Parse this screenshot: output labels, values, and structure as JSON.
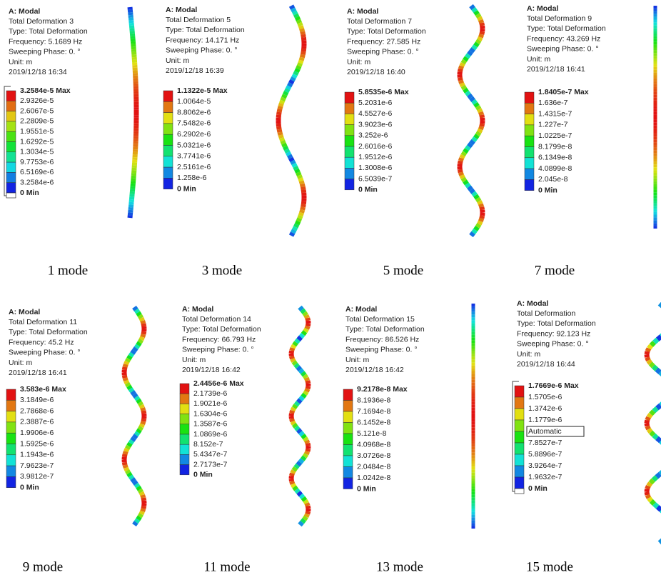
{
  "panels": [
    {
      "header": [
        "A: Modal",
        "Total Deformation 3",
        "Type: Total Deformation",
        "Frequency: 5.1689 Hz",
        "Sweeping Phase: 0. °",
        "Unit: m",
        "2019/12/18 16:34"
      ],
      "legend": [
        "3.2584e-5 Max",
        "2.9326e-5",
        "2.6067e-5",
        "2.2809e-5",
        "1.9551e-5",
        "1.6292e-5",
        "1.3034e-5",
        "9.7753e-6",
        "6.5169e-6",
        "3.2584e-6",
        "0 Min"
      ],
      "caption": "1 mode"
    },
    {
      "header": [
        "A: Modal",
        "Total Deformation 5",
        "Type: Total Deformation",
        "Frequency: 14.171 Hz",
        "Sweeping Phase: 0. °",
        "Unit: m",
        "2019/12/18 16:39"
      ],
      "legend": [
        "1.1322e-5 Max",
        "1.0064e-5",
        "8.8062e-6",
        "7.5482e-6",
        "6.2902e-6",
        "5.0321e-6",
        "3.7741e-6",
        "2.5161e-6",
        "1.258e-6",
        "0 Min"
      ],
      "caption": "3 mode"
    },
    {
      "header": [
        "A: Modal",
        "Total Deformation 7",
        "Type: Total Deformation",
        "Frequency: 27.585 Hz",
        "Sweeping Phase: 0. °",
        "Unit: m",
        "2019/12/18 16:40"
      ],
      "legend": [
        "5.8535e-6 Max",
        "5.2031e-6",
        "4.5527e-6",
        "3.9023e-6",
        "3.252e-6",
        "2.6016e-6",
        "1.9512e-6",
        "1.3008e-6",
        "6.5039e-7",
        "0 Min"
      ],
      "caption": "5 mode"
    },
    {
      "header": [
        "A: Modal",
        "Total Deformation 9",
        "Type: Total Deformation",
        "Frequency: 43.269 Hz",
        "Sweeping Phase: 0. °",
        "Unit: m",
        "2019/12/18 16:41"
      ],
      "legend": [
        "1.8405e-7 Max",
        "1.636e-7",
        "1.4315e-7",
        "1.227e-7",
        "1.0225e-7",
        "8.1799e-8",
        "6.1349e-8",
        "4.0899e-8",
        "2.045e-8",
        "0 Min"
      ],
      "caption": "7 mode"
    },
    {
      "header": [
        "A: Modal",
        "Total Deformation 11",
        "Type: Total Deformation",
        "Frequency: 45.2 Hz",
        "Sweeping Phase: 0. °",
        "Unit: m",
        "2019/12/18 16:41"
      ],
      "legend": [
        "3.583e-6 Max",
        "3.1849e-6",
        "2.7868e-6",
        "2.3887e-6",
        "1.9906e-6",
        "1.5925e-6",
        "1.1943e-6",
        "7.9623e-7",
        "3.9812e-7",
        "0 Min"
      ],
      "caption": "9 mode"
    },
    {
      "header": [
        "A: Modal",
        "Total Deformation 14",
        "Type: Total Deformation",
        "Frequency: 66.793 Hz",
        "Sweeping Phase: 0. °",
        "Unit: m",
        "2019/12/18 16:42"
      ],
      "legend": [
        "2.4456e-6 Max",
        "2.1739e-6",
        "1.9021e-6",
        "1.6304e-6",
        "1.3587e-6",
        "1.0869e-6",
        "8.152e-7",
        "5.4347e-7",
        "2.7173e-7",
        "0 Min"
      ],
      "caption": "11 mode"
    },
    {
      "header": [
        "A: Modal",
        "Total Deformation 15",
        "Type: Total Deformation",
        "Frequency: 86.526 Hz",
        "Sweeping Phase: 0. °",
        "Unit: m",
        "2019/12/18 16:42"
      ],
      "legend": [
        "9.2178e-8 Max",
        "8.1936e-8",
        "7.1694e-8",
        "6.1452e-8",
        "5.121e-8",
        "4.0968e-8",
        "3.0726e-8",
        "2.0484e-8",
        "1.0242e-8",
        "0 Min"
      ],
      "caption": "13 mode"
    },
    {
      "header": [
        "A: Modal",
        "Total Deformation",
        "Type: Total Deformation",
        "Frequency: 92.123 Hz",
        "Sweeping Phase: 0. °",
        "Unit: m",
        "2019/12/18 16:44"
      ],
      "legend": [
        "1.7669e-6 Max",
        "1.5705e-6",
        "1.3742e-6",
        "1.1779e-6",
        "Automatic",
        "7.8527e-7",
        "5.8896e-7",
        "3.9264e-7",
        "1.9632e-7",
        "0 Min"
      ],
      "caption": "15 mode"
    }
  ]
}
